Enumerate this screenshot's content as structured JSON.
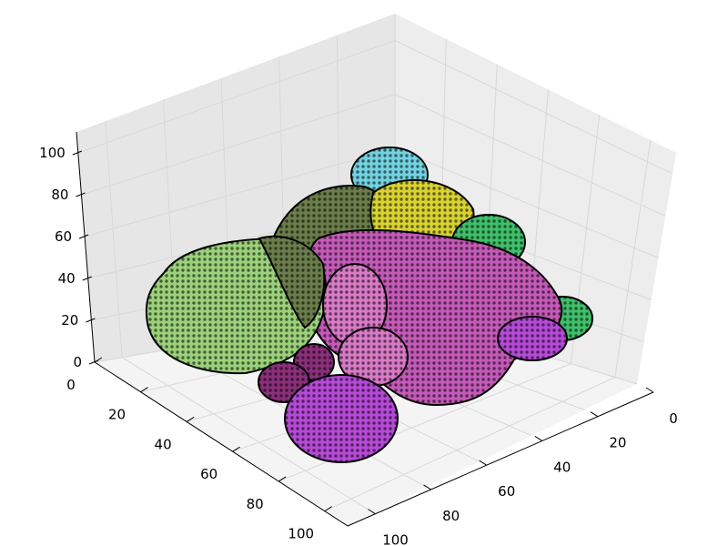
{
  "chart_data": {
    "type": "surface3d",
    "title": "",
    "xlabel": "",
    "ylabel": "",
    "zlabel": "",
    "x_ticks": [
      "0",
      "20",
      "40",
      "60",
      "80",
      "100"
    ],
    "y_ticks": [
      "0",
      "20",
      "40",
      "60",
      "80",
      "100"
    ],
    "z_ticks": [
      "0",
      "20",
      "40",
      "60",
      "80",
      "100"
    ],
    "xlim": [
      0,
      110
    ],
    "ylim": [
      0,
      110
    ],
    "zlim": [
      0,
      110
    ],
    "grid": true,
    "colors": {
      "pane_left": "#e6e6e6",
      "pane_right": "#ededed",
      "pane_floor": "#f4f4f4",
      "grid": "#d8d8d8",
      "mesh_edge": "#000000",
      "green_blob": "#9bd17a",
      "olive_blob": "#6a7d4a",
      "yellow_blob": "#d8d232",
      "cyan_blob": "#72d2e0",
      "teal_blob": "#3fbf6a",
      "magenta_blob": "#c45ab8",
      "pink_blob": "#d87ac6",
      "purple_blob": "#b54ad6",
      "plum_blob": "#8a2f7a"
    }
  }
}
